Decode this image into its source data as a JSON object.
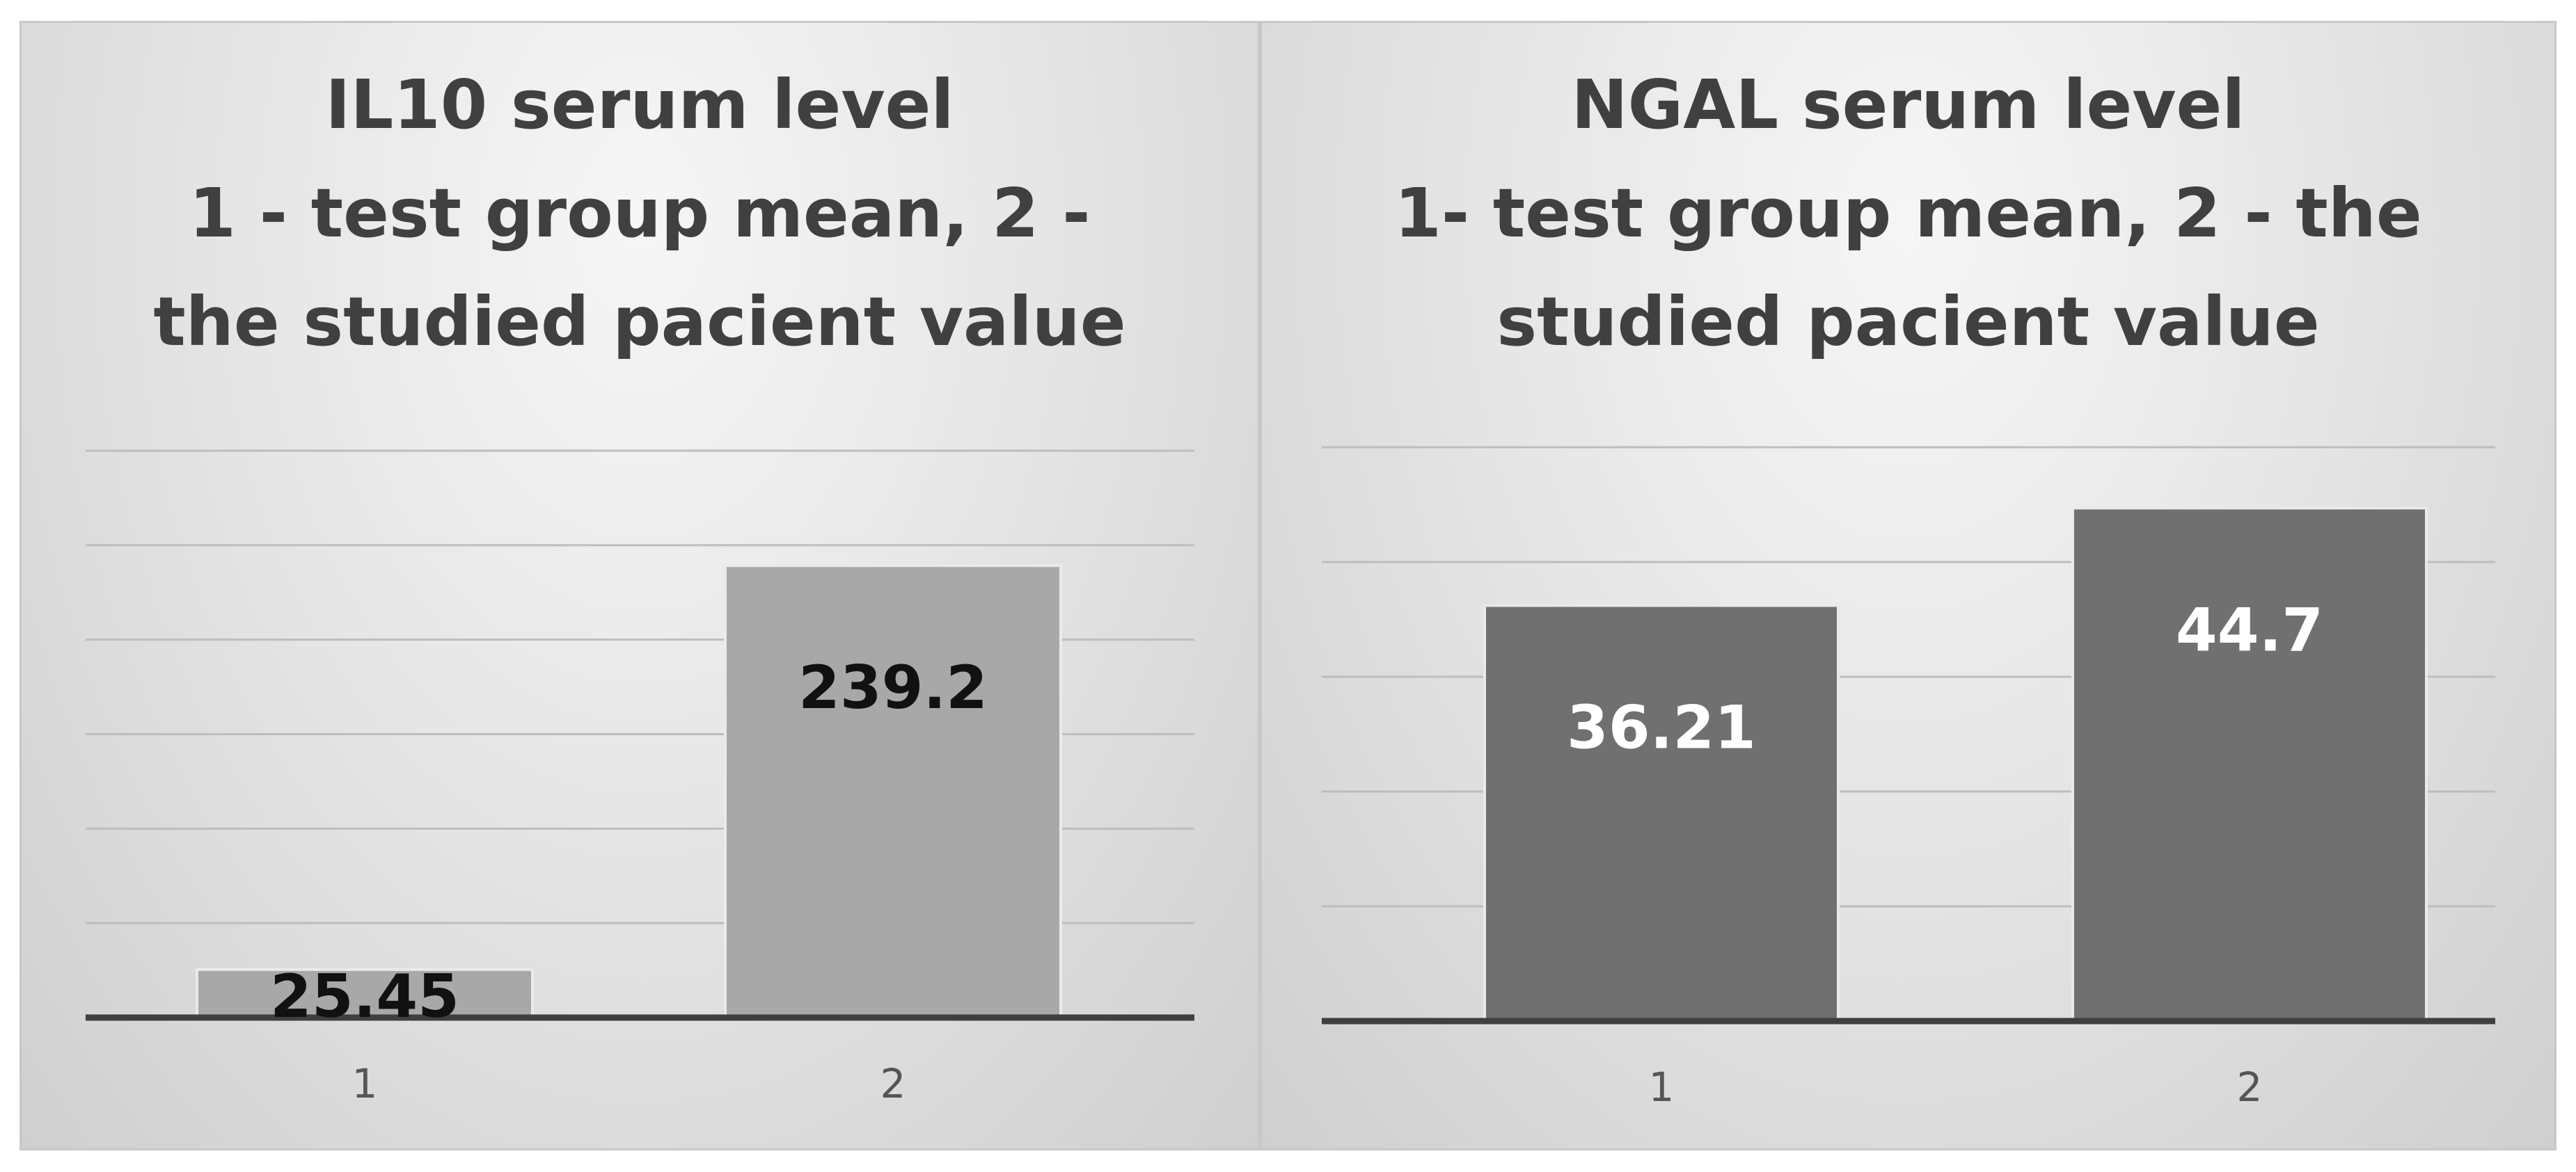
{
  "chart_data": [
    {
      "type": "bar",
      "title": "IL10 serum level\n1 - test group mean, 2 -\nthe studied pacient value",
      "categories": [
        "1",
        "2"
      ],
      "values": [
        25.45,
        239.2
      ],
      "data_labels": [
        "25.45",
        "239.2"
      ],
      "ylim": [
        0,
        300
      ],
      "grid": true,
      "legend": "none",
      "bar_color": "#a8a8a8",
      "label_color": "#111111"
    },
    {
      "type": "bar",
      "title": "NGAL serum level\n1- test group mean, 2 - the\nstudied pacient value",
      "categories": [
        "1",
        "2"
      ],
      "values": [
        36.21,
        44.7
      ],
      "data_labels": [
        "36.21",
        "44.7"
      ],
      "ylim": [
        0,
        50
      ],
      "grid": true,
      "legend": "none",
      "bar_color": "#707070",
      "label_color": "#ffffff"
    }
  ]
}
